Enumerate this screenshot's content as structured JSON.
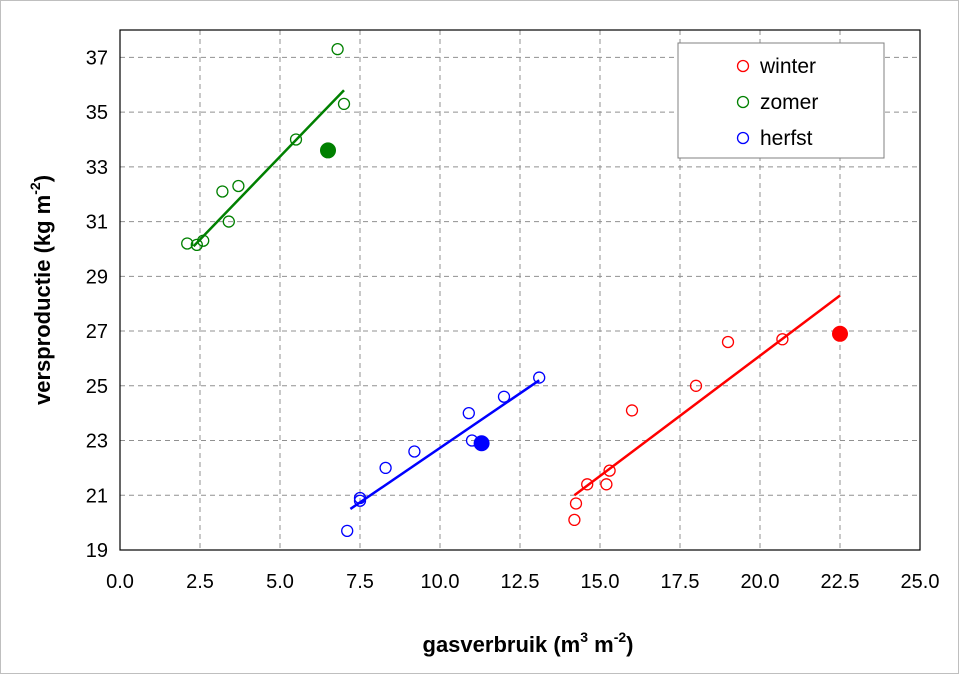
{
  "chart_data": {
    "type": "scatter",
    "title": "",
    "xlabel": {
      "main": "gasverbruik (m",
      "sup1": "3",
      "mid": " m",
      "sup2": "-2",
      "end": ")"
    },
    "ylabel": {
      "main": "versproductie (kg m",
      "sup": "-2",
      "end": ")"
    },
    "xlim": [
      0,
      25
    ],
    "ylim": [
      19,
      38
    ],
    "xticks": [
      "0.0",
      "2.5",
      "5.0",
      "7.5",
      "10.0",
      "12.5",
      "15.0",
      "17.5",
      "20.0",
      "22.5",
      "25.0"
    ],
    "yticks": [
      "19",
      "21",
      "23",
      "25",
      "27",
      "29",
      "31",
      "33",
      "35",
      "37"
    ],
    "grid": true,
    "legend_position": "top-right",
    "series": [
      {
        "name": "winter",
        "color": "#ff0000",
        "points": [
          [
            14.2,
            20.1
          ],
          [
            14.25,
            20.7
          ],
          [
            14.6,
            21.4
          ],
          [
            15.2,
            21.4
          ],
          [
            15.3,
            21.9
          ],
          [
            16.0,
            24.1
          ],
          [
            18.0,
            25.0
          ],
          [
            19.0,
            26.6
          ],
          [
            20.7,
            26.7
          ]
        ],
        "highlight": [
          22.5,
          26.9
        ],
        "trend": [
          [
            14.2,
            21.0
          ],
          [
            22.5,
            28.3
          ]
        ]
      },
      {
        "name": "zomer",
        "color": "#008000",
        "points": [
          [
            2.1,
            30.2
          ],
          [
            2.4,
            30.15
          ],
          [
            2.6,
            30.3
          ],
          [
            3.2,
            32.1
          ],
          [
            3.4,
            31.0
          ],
          [
            3.7,
            32.3
          ],
          [
            5.5,
            34.0
          ],
          [
            6.8,
            37.3
          ],
          [
            7.0,
            35.3
          ]
        ],
        "highlight": [
          6.5,
          33.6
        ],
        "trend": [
          [
            2.3,
            30.1
          ],
          [
            7.0,
            35.8
          ]
        ]
      },
      {
        "name": "herfst",
        "color": "#0000ff",
        "points": [
          [
            7.1,
            19.7
          ],
          [
            7.5,
            20.9
          ],
          [
            7.5,
            20.8
          ],
          [
            8.3,
            22.0
          ],
          [
            9.2,
            22.6
          ],
          [
            10.9,
            24.0
          ],
          [
            11.0,
            23.0
          ],
          [
            12.0,
            24.6
          ],
          [
            13.1,
            25.3
          ]
        ],
        "highlight": [
          11.3,
          22.9
        ],
        "trend": [
          [
            7.2,
            20.5
          ],
          [
            13.1,
            25.2
          ]
        ]
      }
    ]
  }
}
